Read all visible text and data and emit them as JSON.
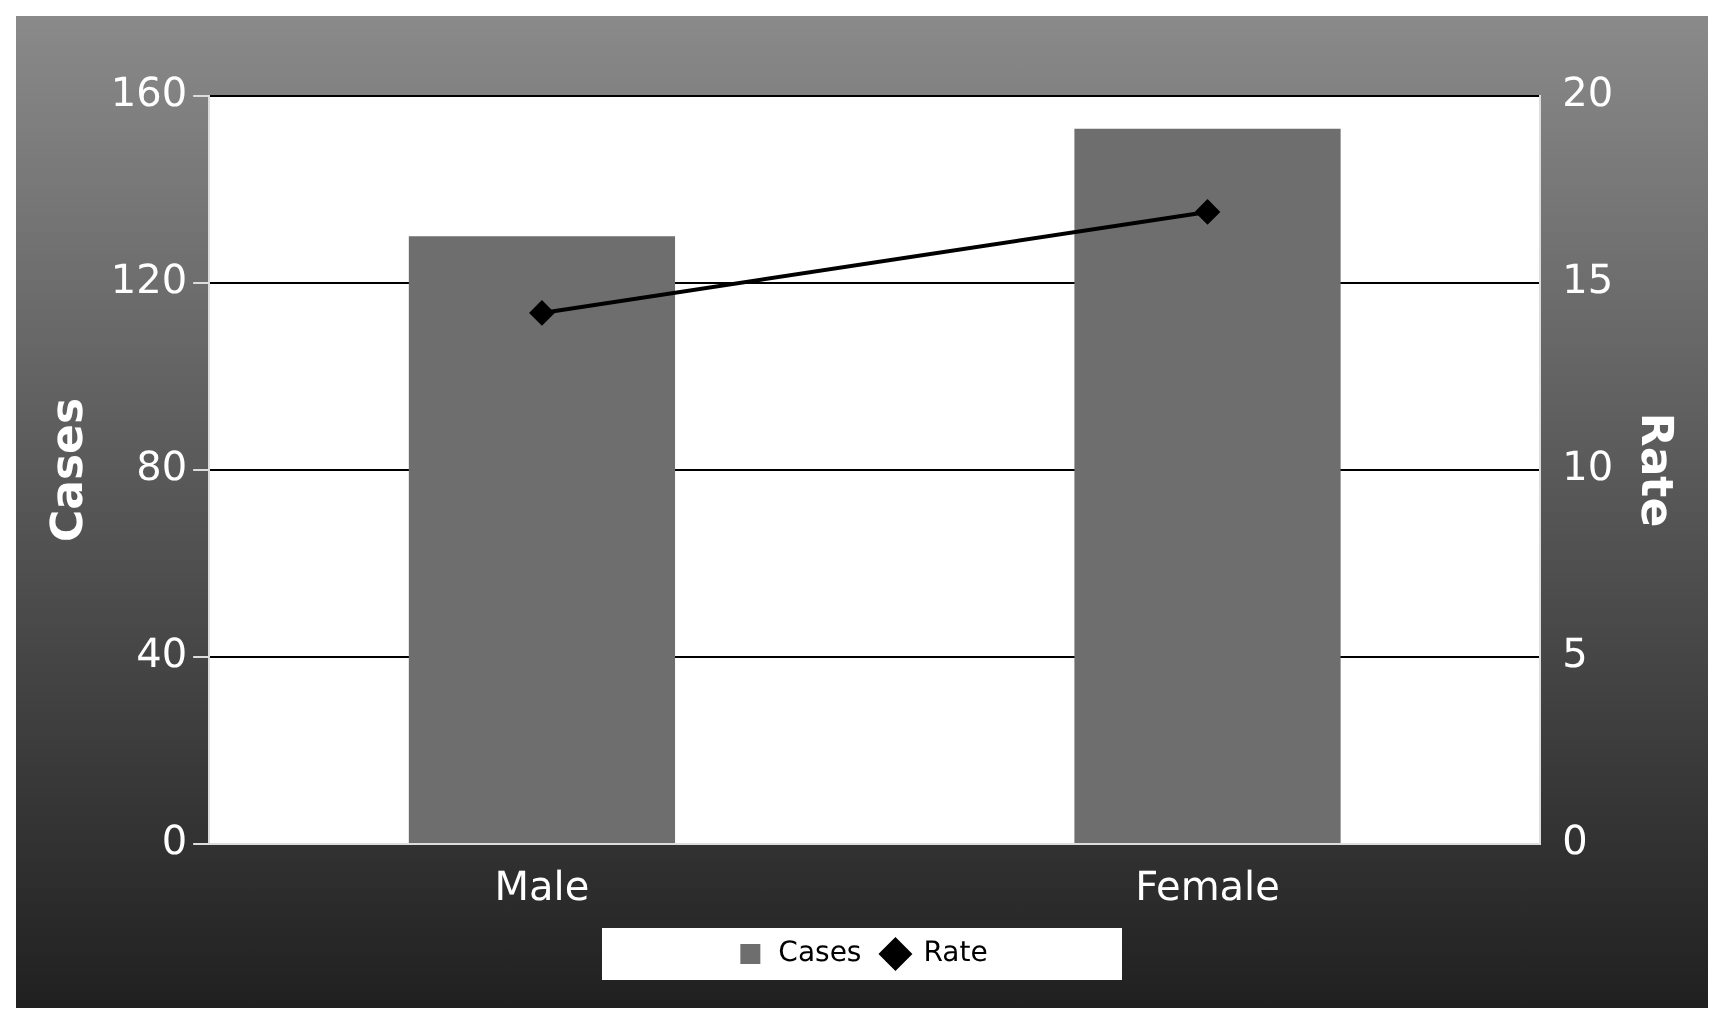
{
  "chart_data": {
    "type": "bar",
    "categories": [
      "Male",
      "Female"
    ],
    "series": [
      {
        "name": "Cases",
        "color": "#6e6e6e",
        "values": [
          130,
          153
        ]
      },
      {
        "name": "Rate",
        "type": "line",
        "axis": "y2",
        "color": "#000000",
        "values": [
          14.2,
          16.9
        ]
      }
    ],
    "ylabel": "Cases",
    "y2label": "Rate",
    "ylim": [
      0,
      160
    ],
    "yticks": [
      0,
      40,
      80,
      120,
      160
    ],
    "y2lim": [
      0,
      20
    ],
    "y2ticks": [
      0,
      5,
      10,
      15,
      20
    ],
    "grid": "y",
    "legend": "bottom",
    "marker": "diamond"
  }
}
